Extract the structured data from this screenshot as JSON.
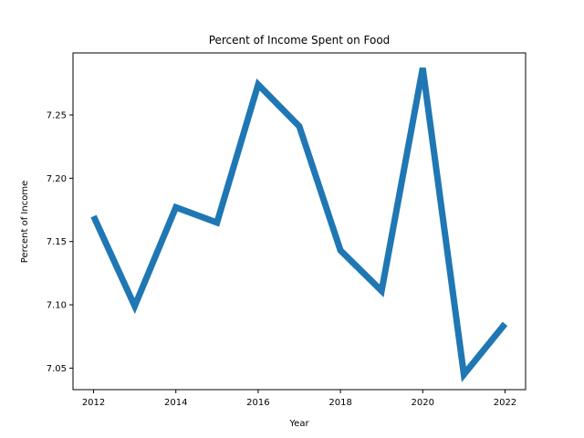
{
  "chart_data": {
    "type": "line",
    "title": "Percent of Income Spent on Food",
    "xlabel": "Year",
    "ylabel": "Percent of Income",
    "x": [
      2012,
      2013,
      2014,
      2015,
      2016,
      2017,
      2018,
      2019,
      2020,
      2021,
      2022
    ],
    "series": [
      {
        "values": [
          7.17,
          7.099,
          7.177,
          7.165,
          7.274,
          7.241,
          7.143,
          7.111,
          7.287,
          7.045,
          7.085
        ],
        "color": "#1f77b4"
      }
    ],
    "xlim": [
      2011.5,
      2022.5
    ],
    "ylim": [
      7.033,
      7.299
    ],
    "xticks": [
      2012,
      2014,
      2016,
      2018,
      2020,
      2022
    ],
    "yticks": [
      7.05,
      7.1,
      7.15,
      7.2,
      7.25
    ],
    "ytick_labels": [
      "7.05",
      "7.10",
      "7.15",
      "7.20",
      "7.25"
    ],
    "grid": false,
    "legend": "none"
  }
}
